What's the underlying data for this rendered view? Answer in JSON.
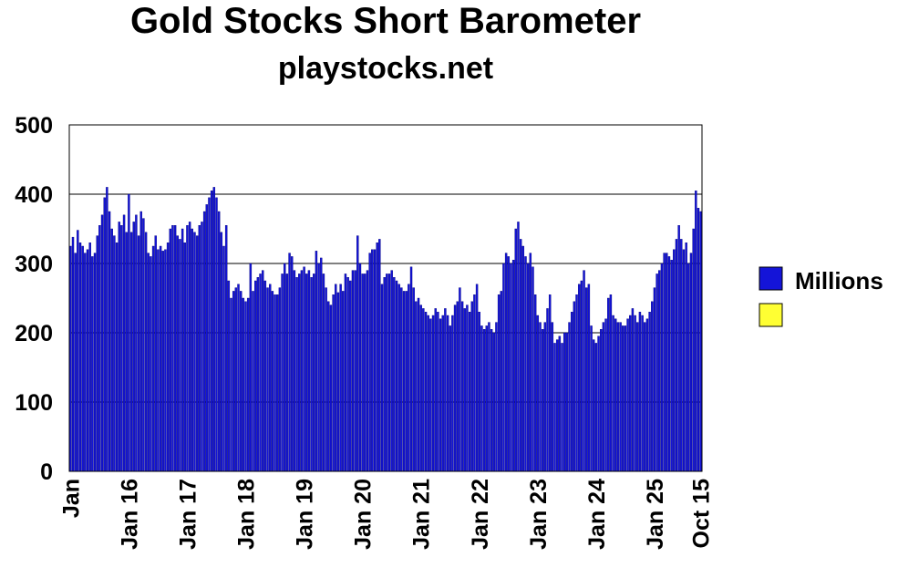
{
  "chart_data": {
    "type": "bar",
    "title": "Gold Stocks Short Barometer",
    "subtitle": "playstocks.net",
    "categories": [
      "Jan",
      null,
      null,
      null,
      null,
      null,
      null,
      null,
      null,
      null,
      null,
      null,
      null,
      null,
      null,
      null,
      null,
      null,
      null,
      null,
      null,
      null,
      null,
      null,
      "Jan 16",
      null,
      null,
      null,
      null,
      null,
      null,
      null,
      null,
      null,
      null,
      null,
      null,
      null,
      null,
      null,
      null,
      null,
      null,
      null,
      null,
      null,
      null,
      null,
      "Jan 17",
      null,
      null,
      null,
      null,
      null,
      null,
      null,
      null,
      null,
      null,
      null,
      null,
      null,
      null,
      null,
      null,
      null,
      null,
      null,
      null,
      null,
      null,
      null,
      "Jan 18",
      null,
      null,
      null,
      null,
      null,
      null,
      null,
      null,
      null,
      null,
      null,
      null,
      null,
      null,
      null,
      null,
      null,
      null,
      null,
      null,
      null,
      null,
      null,
      "Jan 19",
      null,
      null,
      null,
      null,
      null,
      null,
      null,
      null,
      null,
      null,
      null,
      null,
      null,
      null,
      null,
      null,
      null,
      null,
      null,
      null,
      null,
      null,
      null,
      "Jan 20",
      null,
      null,
      null,
      null,
      null,
      null,
      null,
      null,
      null,
      null,
      null,
      null,
      null,
      null,
      null,
      null,
      null,
      null,
      null,
      null,
      null,
      null,
      null,
      "Jan 21",
      null,
      null,
      null,
      null,
      null,
      null,
      null,
      null,
      null,
      null,
      null,
      null,
      null,
      null,
      null,
      null,
      null,
      null,
      null,
      null,
      null,
      null,
      null,
      "Jan 22",
      null,
      null,
      null,
      null,
      null,
      null,
      null,
      null,
      null,
      null,
      null,
      null,
      null,
      null,
      null,
      null,
      null,
      null,
      null,
      null,
      null,
      null,
      null,
      "Jan 23",
      null,
      null,
      null,
      null,
      null,
      null,
      null,
      null,
      null,
      null,
      null,
      null,
      null,
      null,
      null,
      null,
      null,
      null,
      null,
      null,
      null,
      null,
      null,
      "Jan 24",
      null,
      null,
      null,
      null,
      null,
      null,
      null,
      null,
      null,
      null,
      null,
      null,
      null,
      null,
      null,
      null,
      null,
      null,
      null,
      null,
      null,
      null,
      null,
      "Jan 25",
      null,
      null,
      null,
      null,
      null,
      null,
      null,
      null,
      null,
      null,
      null,
      null,
      null,
      null,
      null,
      null,
      null,
      null,
      "Oct 15"
    ],
    "series": [
      {
        "name": "Millions",
        "color": "#1414d8",
        "values": [
          325,
          338,
          315,
          348,
          330,
          325,
          315,
          320,
          330,
          310,
          315,
          340,
          355,
          370,
          395,
          410,
          375,
          350,
          340,
          330,
          360,
          355,
          370,
          345,
          400,
          345,
          360,
          370,
          340,
          375,
          365,
          345,
          315,
          310,
          325,
          340,
          320,
          325,
          318,
          320,
          330,
          350,
          355,
          355,
          340,
          335,
          350,
          330,
          355,
          360,
          350,
          345,
          340,
          355,
          360,
          375,
          385,
          395,
          405,
          410,
          395,
          375,
          345,
          325,
          355,
          275,
          250,
          260,
          265,
          270,
          260,
          250,
          245,
          250,
          300,
          260,
          275,
          280,
          285,
          290,
          275,
          265,
          270,
          260,
          255,
          255,
          265,
          285,
          300,
          285,
          315,
          310,
          290,
          280,
          285,
          290,
          295,
          285,
          290,
          280,
          285,
          318,
          300,
          308,
          285,
          265,
          245,
          240,
          255,
          270,
          258,
          270,
          260,
          285,
          280,
          275,
          290,
          290,
          340,
          300,
          285,
          285,
          290,
          315,
          320,
          320,
          330,
          335,
          270,
          280,
          285,
          285,
          290,
          280,
          275,
          270,
          265,
          260,
          260,
          270,
          295,
          265,
          245,
          250,
          240,
          235,
          230,
          225,
          220,
          225,
          235,
          230,
          220,
          225,
          235,
          225,
          210,
          225,
          240,
          245,
          265,
          245,
          235,
          240,
          230,
          245,
          255,
          270,
          230,
          210,
          205,
          210,
          215,
          205,
          200,
          215,
          255,
          260,
          300,
          315,
          310,
          300,
          305,
          350,
          360,
          335,
          325,
          310,
          300,
          315,
          295,
          255,
          225,
          215,
          205,
          215,
          235,
          255,
          215,
          185,
          190,
          195,
          185,
          200,
          200,
          215,
          230,
          245,
          255,
          270,
          275,
          290,
          265,
          270,
          210,
          190,
          185,
          195,
          205,
          215,
          220,
          250,
          255,
          225,
          220,
          215,
          215,
          210,
          210,
          220,
          225,
          235,
          225,
          215,
          230,
          225,
          215,
          220,
          230,
          245,
          265,
          285,
          290,
          300,
          315,
          315,
          310,
          305,
          320,
          335,
          355,
          335,
          320,
          330,
          300,
          315,
          350,
          405,
          380,
          375
        ]
      }
    ],
    "ylim": [
      0,
      500
    ],
    "yticks": [
      0,
      100,
      200,
      300,
      400,
      500
    ],
    "grid": true
  }
}
